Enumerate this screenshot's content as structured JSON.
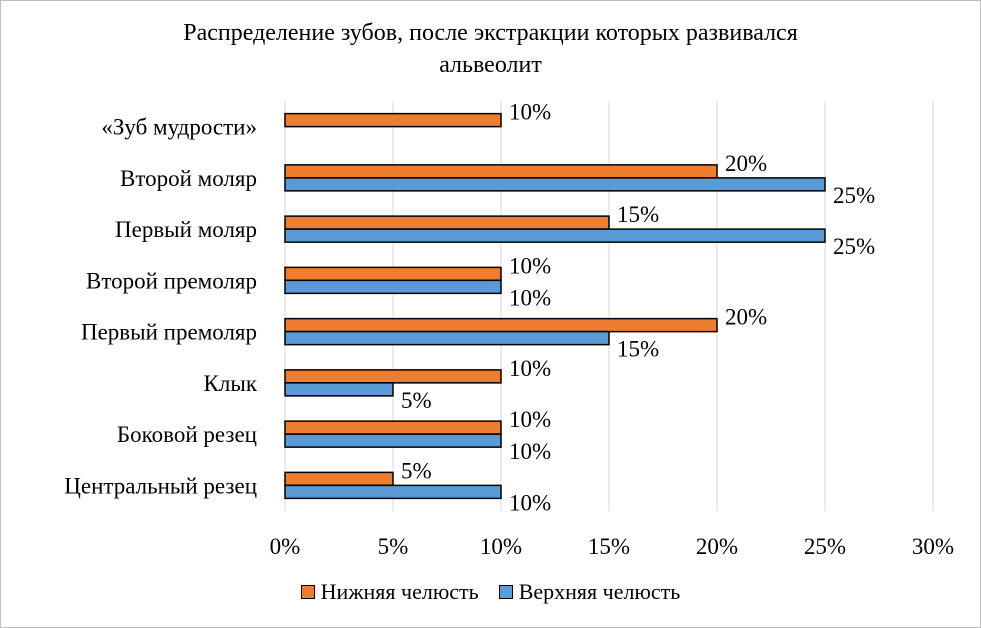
{
  "chart_data": {
    "type": "bar",
    "orientation": "horizontal",
    "title_lines": [
      "Распределение зубов, после экстракции которых развивался",
      "альвеолит"
    ],
    "categories": [
      "«Зуб мудрости»",
      "Второй моляр",
      "Первый моляр",
      "Второй премоляр",
      "Первый премоляр",
      "Клык",
      "Боковой резец",
      "Центральный резец"
    ],
    "series": [
      {
        "name": "Нижняя челюсть",
        "color": "#ed7d31",
        "values": [
          10,
          20,
          15,
          10,
          20,
          10,
          10,
          5
        ],
        "labels": [
          "10%",
          "20%",
          "15%",
          "10%",
          "20%",
          "10%",
          "10%",
          "5%"
        ]
      },
      {
        "name": "Верхняя челюсть",
        "color": "#5b9bd5",
        "values": [
          null,
          25,
          25,
          10,
          15,
          5,
          10,
          10
        ],
        "labels": [
          "",
          "25%",
          "25%",
          "10%",
          "15%",
          "5%",
          "10%",
          "10%"
        ]
      }
    ],
    "x_ticks": [
      "0%",
      "5%",
      "10%",
      "15%",
      "20%",
      "25%",
      "30%"
    ],
    "xlim": [
      0,
      30
    ],
    "grid": true,
    "legend_position": "bottom"
  }
}
